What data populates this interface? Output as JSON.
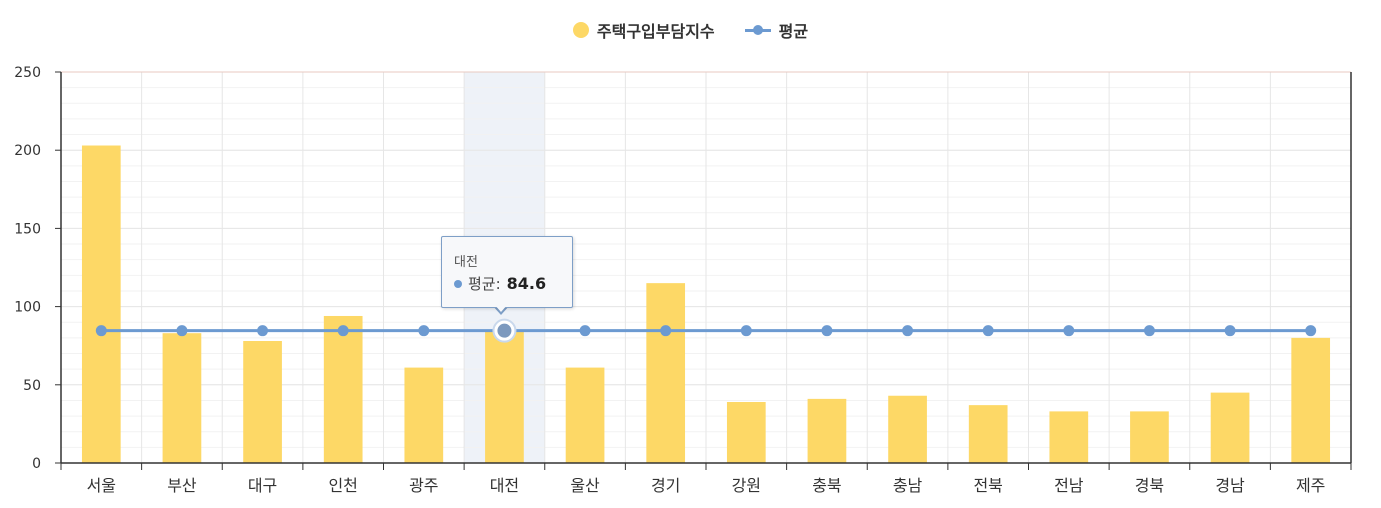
{
  "chart_data": {
    "type": "bar",
    "categories": [
      "서울",
      "부산",
      "대구",
      "인천",
      "광주",
      "대전",
      "울산",
      "경기",
      "강원",
      "충북",
      "충남",
      "전북",
      "전남",
      "경북",
      "경남",
      "제주"
    ],
    "series": [
      {
        "name": "주택구입부담지수",
        "type": "bar",
        "color": "#FDD866",
        "values": [
          203,
          83,
          78,
          94,
          61,
          84,
          61,
          115,
          39,
          41,
          43,
          37,
          33,
          33,
          45,
          80
        ]
      },
      {
        "name": "평균",
        "type": "line",
        "color": "#6C9AD1",
        "values": [
          84.6,
          84.6,
          84.6,
          84.6,
          84.6,
          84.6,
          84.6,
          84.6,
          84.6,
          84.6,
          84.6,
          84.6,
          84.6,
          84.6,
          84.6,
          84.6
        ]
      }
    ],
    "ylim": [
      0,
      250
    ],
    "yticks": [
      "0",
      "50",
      "100",
      "150",
      "200",
      "250"
    ],
    "grid": true,
    "legend": "top-center",
    "highlighted_category": "대전"
  },
  "legend": {
    "bar_label": "주택구입부담지수",
    "line_label": "평균"
  },
  "tooltip": {
    "title": "대전",
    "series_label": "평균:",
    "value": "84.6"
  }
}
